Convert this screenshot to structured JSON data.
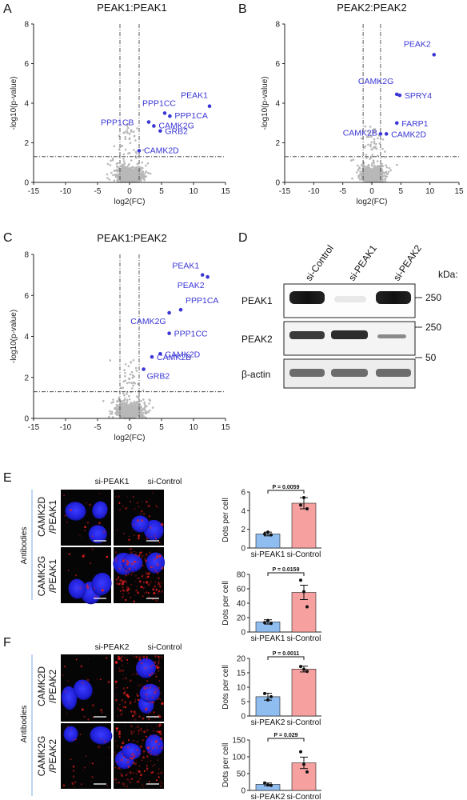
{
  "panels": {
    "A": {
      "letter": "A",
      "title": "PEAK1:PEAK1"
    },
    "B": {
      "letter": "B",
      "title": "PEAK2:PEAK2"
    },
    "C": {
      "letter": "C",
      "title": "PEAK1:PEAK2"
    },
    "D": {
      "letter": "D"
    },
    "E": {
      "letter": "E"
    },
    "F": {
      "letter": "F"
    }
  },
  "chart_data": [
    {
      "id": "A",
      "type": "scatter",
      "title": "PEAK1:PEAK1",
      "xlabel": "log2(FC)",
      "ylabel": "-log10(p-value)",
      "xlim": [
        -15,
        15
      ],
      "ylim": [
        0,
        8
      ],
      "xticks": [
        -15,
        -10,
        -5,
        0,
        5,
        10,
        15
      ],
      "yticks": [
        0,
        2,
        4,
        6,
        8
      ],
      "thresholds": {
        "x": [
          -1.5,
          1.5
        ],
        "y": 1.3
      },
      "highlighted": [
        {
          "name": "PEAK1",
          "x": 12.5,
          "y": 3.85
        },
        {
          "name": "PPP1CC",
          "x": 5.5,
          "y": 3.5
        },
        {
          "name": "PPP1CA",
          "x": 6.3,
          "y": 3.35
        },
        {
          "name": "PPP1CB",
          "x": 3.0,
          "y": 3.05
        },
        {
          "name": "CAMK2G",
          "x": 3.8,
          "y": 2.85
        },
        {
          "name": "GRB2",
          "x": 4.8,
          "y": 2.6
        },
        {
          "name": "CAMK2D",
          "x": 1.5,
          "y": 1.6
        }
      ]
    },
    {
      "id": "B",
      "type": "scatter",
      "title": "PEAK2:PEAK2",
      "xlabel": "log2(FC)",
      "ylabel": "-log10(p-value)",
      "xlim": [
        -15,
        15
      ],
      "ylim": [
        0,
        8
      ],
      "xticks": [
        -15,
        -10,
        -5,
        0,
        5,
        10,
        15
      ],
      "yticks": [
        0,
        2,
        4,
        6,
        8
      ],
      "thresholds": {
        "x": [
          -1.5,
          1.5
        ],
        "y": 1.3
      },
      "highlighted": [
        {
          "name": "PEAK2",
          "x": 10.7,
          "y": 6.45
        },
        {
          "name": "CAMK2G",
          "x": 4.3,
          "y": 4.45
        },
        {
          "name": "SPRY4",
          "x": 4.8,
          "y": 4.4
        },
        {
          "name": "FARP1",
          "x": 4.3,
          "y": 3.0
        },
        {
          "name": "CAMK2B",
          "x": 1.5,
          "y": 2.45
        },
        {
          "name": "CAMK2D",
          "x": 2.5,
          "y": 2.45
        }
      ]
    },
    {
      "id": "C",
      "type": "scatter",
      "title": "PEAK1:PEAK2",
      "xlabel": "log2(FC)",
      "ylabel": "-log10(p-value)",
      "xlim": [
        -15,
        15
      ],
      "ylim": [
        0,
        8
      ],
      "xticks": [
        -15,
        -10,
        -5,
        0,
        5,
        10,
        15
      ],
      "yticks": [
        0,
        2,
        4,
        6,
        8
      ],
      "thresholds": {
        "x": [
          -1.5,
          1.5
        ],
        "y": 1.3
      },
      "highlighted": [
        {
          "name": "PEAK1",
          "x": 11.4,
          "y": 7.0
        },
        {
          "name": "PEAK2",
          "x": 12.2,
          "y": 6.9
        },
        {
          "name": "PPP1CA",
          "x": 8.0,
          "y": 5.3
        },
        {
          "name": "CAMK2G",
          "x": 6.2,
          "y": 5.15
        },
        {
          "name": "PPP1CC",
          "x": 6.2,
          "y": 4.15
        },
        {
          "name": "CAMK2D",
          "x": 4.8,
          "y": 3.15
        },
        {
          "name": "CAMK2B",
          "x": 3.5,
          "y": 3.0
        },
        {
          "name": "GRB2",
          "x": 2.2,
          "y": 2.4
        }
      ]
    },
    {
      "id": "E1",
      "type": "bar",
      "ylabel": "Dots per cell",
      "categories": [
        "si-PEAK1",
        "si-Control"
      ],
      "values": [
        1.5,
        4.8
      ],
      "errors": [
        0.2,
        0.6
      ],
      "points": [
        [
          1.5,
          1.7,
          1.4
        ],
        [
          4.6,
          5.4,
          4.2
        ]
      ],
      "ylim": [
        0,
        6
      ],
      "yticks": [
        0,
        2,
        4,
        6
      ],
      "annotation": "P = 0.0059",
      "colors": [
        "#8fbdf0",
        "#f6a0a0"
      ]
    },
    {
      "id": "E2",
      "type": "bar",
      "ylabel": "Dots per cell",
      "categories": [
        "si-PEAK1",
        "si-Control"
      ],
      "values": [
        14,
        55
      ],
      "errors": [
        3,
        10
      ],
      "points": [
        [
          13,
          16,
          12
        ],
        [
          72,
          56,
          35
        ]
      ],
      "ylim": [
        0,
        80
      ],
      "yticks": [
        0,
        20,
        40,
        60,
        80
      ],
      "annotation": "P = 0.0159",
      "colors": [
        "#8fbdf0",
        "#f6a0a0"
      ]
    },
    {
      "id": "F1",
      "type": "bar",
      "ylabel": "Dots per cell",
      "categories": [
        "si-PEAK2",
        "si-Control"
      ],
      "values": [
        6.7,
        16.3
      ],
      "errors": [
        1.2,
        1.0
      ],
      "points": [
        [
          7.8,
          5.6,
          6.7
        ],
        [
          17.2,
          16.2,
          15.5
        ]
      ],
      "ylim": [
        0,
        20
      ],
      "yticks": [
        0,
        5,
        10,
        15,
        20
      ],
      "annotation": "P = 0.0011",
      "colors": [
        "#8fbdf0",
        "#f6a0a0"
      ]
    },
    {
      "id": "F2",
      "type": "bar",
      "ylabel": "Dots per cell",
      "categories": [
        "si-PEAK2",
        "si-Control"
      ],
      "values": [
        18,
        82
      ],
      "errors": [
        4,
        17
      ],
      "points": [
        [
          22,
          16,
          15
        ],
        [
          115,
          78,
          55
        ]
      ],
      "ylim": [
        0,
        150
      ],
      "yticks": [
        0,
        50,
        100,
        150
      ],
      "annotation": "P = 0.029",
      "colors": [
        "#8fbdf0",
        "#f6a0a0"
      ]
    }
  ],
  "western_blot": {
    "lanes": [
      "si-Control",
      "si-PEAK1",
      "si-PEAK2"
    ],
    "rows": [
      "PEAK1",
      "PEAK2",
      "β-actin"
    ],
    "kda_label": "kDa:",
    "markers": [
      "250",
      "250",
      "50"
    ]
  },
  "microscopy": {
    "E": {
      "columns": [
        "si-PEAK1",
        "si-Control"
      ],
      "side": "Antibodies",
      "rows": [
        "CAMK2D\n/PEAK1",
        "CAMK2G\n/PEAK1"
      ],
      "row_lines": [
        [
          "CAMK2D",
          "/PEAK1"
        ],
        [
          "CAMK2G",
          "/PEAK1"
        ]
      ]
    },
    "F": {
      "columns": [
        "si-PEAK2",
        "si-Control"
      ],
      "side": "Antibodies",
      "rows": [
        "CAMK2D\n/PEAK2",
        "CAMK2G\n/PEAK2"
      ],
      "row_lines": [
        [
          "CAMK2D",
          "/PEAK2"
        ],
        [
          "CAMK2G",
          "/PEAK2"
        ]
      ]
    }
  },
  "colors": {
    "accent": "#3b37d6",
    "scatter": "#b8b8b8",
    "bar_knockdown": "#8fbdf0",
    "bar_control": "#f6a0a0"
  }
}
